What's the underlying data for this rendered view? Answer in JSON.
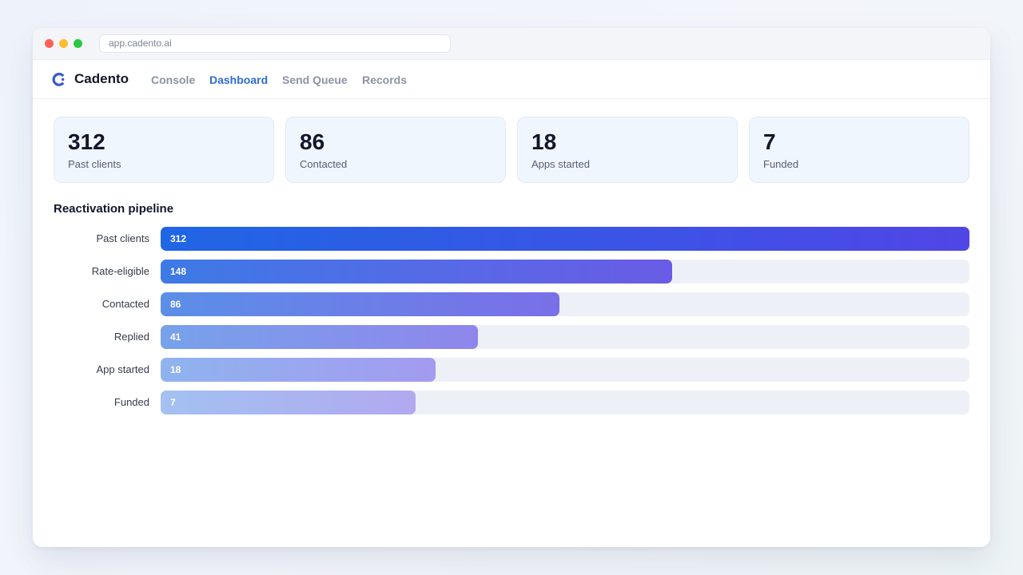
{
  "browser": {
    "url": "app.cadento.ai"
  },
  "app": {
    "brand": "Cadento",
    "logo_icon": "cadento-logo-icon",
    "accent_color": "#2e6bd8"
  },
  "nav": {
    "items": [
      {
        "label": "Console",
        "active": false
      },
      {
        "label": "Dashboard",
        "active": true
      },
      {
        "label": "Send Queue",
        "active": false
      },
      {
        "label": "Records",
        "active": false
      }
    ]
  },
  "stats": [
    {
      "value": "312",
      "label": "Past clients"
    },
    {
      "value": "86",
      "label": "Contacted"
    },
    {
      "value": "18",
      "label": "Apps started"
    },
    {
      "value": "7",
      "label": "Funded"
    }
  ],
  "pipeline": {
    "title": "Reactivation pipeline"
  },
  "chart_data": {
    "type": "bar",
    "orientation": "horizontal",
    "title": "Reactivation pipeline",
    "categories": [
      "Past clients",
      "Rate-eligible",
      "Contacted",
      "Replied",
      "App started",
      "Funded"
    ],
    "values": [
      312,
      148,
      86,
      41,
      18,
      7
    ],
    "bar_fill_fraction": [
      1.0,
      0.632,
      0.493,
      0.392,
      0.34,
      0.315
    ],
    "colors": {
      "start": [
        "#1f66e5",
        "#3d7ae6",
        "#5b8fe8",
        "#77a2eb",
        "#8fb3ef",
        "#a3c1f1"
      ],
      "end": [
        "#5046e6",
        "#6a5ce6",
        "#7a6fe8",
        "#8f86ec",
        "#a39bf0",
        "#b1a9f0"
      ]
    },
    "track_color": "#edf1f7",
    "grid": false,
    "legend": "none"
  }
}
